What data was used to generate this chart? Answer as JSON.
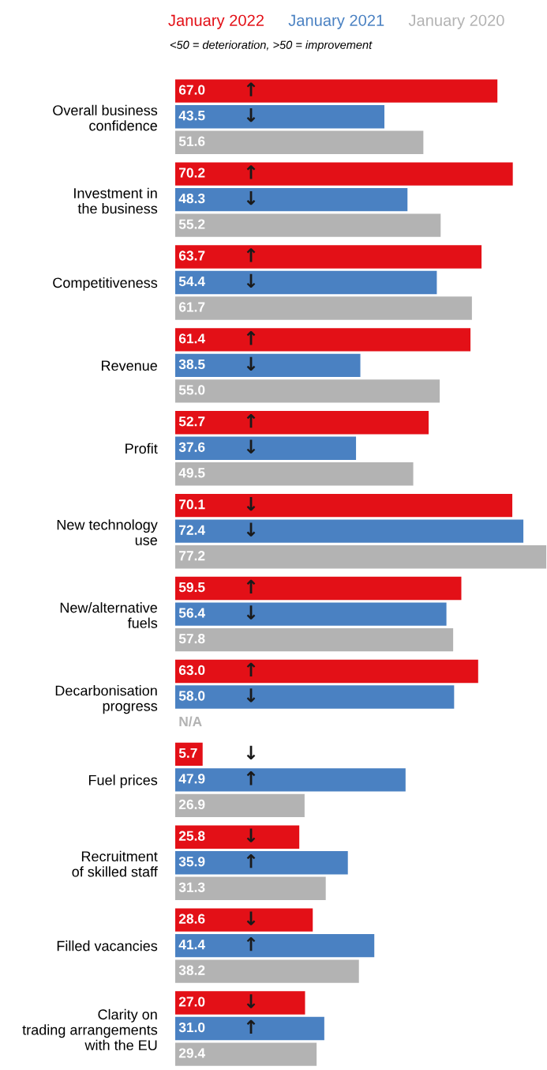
{
  "chart_data": {
    "type": "bar",
    "orientation": "horizontal",
    "subtitle": "<50 = deterioration, >50 = improvement",
    "legend": "top",
    "categories": [
      "Overall business\nconfidence",
      "Investment in\nthe business",
      "Competitiveness",
      "Revenue",
      "Profit",
      "New technology\nuse",
      "New/alternative\nfuels",
      "Decarbonisation\nprogress",
      "Fuel prices",
      "Recruitment\nof skilled staff",
      "Filled vacancies",
      "Clarity on\ntrading arrangements\nwith the EU"
    ],
    "series": [
      {
        "name": "January 2022",
        "color": "#e31017",
        "values": [
          67.0,
          70.2,
          63.7,
          61.4,
          52.7,
          70.1,
          59.5,
          63.0,
          5.7,
          25.8,
          28.6,
          27.0
        ],
        "value_labels": [
          "67.0",
          "70.2",
          "63.7",
          "61.4",
          "52.7",
          "70.1",
          "59.5",
          "63.0",
          "5.7",
          "25.8",
          "28.6",
          "27.0"
        ]
      },
      {
        "name": "January 2021",
        "color": "#4a81c2",
        "values": [
          43.5,
          48.3,
          54.4,
          38.5,
          37.6,
          72.4,
          56.4,
          58.0,
          47.9,
          35.9,
          41.4,
          31.0
        ],
        "value_labels": [
          "43.5",
          "48.3",
          "54.4",
          "38.5",
          "37.6",
          "72.4",
          "56.4",
          "58.0",
          "47.9",
          "35.9",
          "41.4",
          "31.0"
        ]
      },
      {
        "name": "January 2020",
        "color": "#b3b3b3",
        "values": [
          51.6,
          55.2,
          61.7,
          55.0,
          49.5,
          77.2,
          57.8,
          null,
          26.9,
          31.3,
          38.2,
          29.4
        ],
        "value_labels": [
          "51.6",
          "55.2",
          "61.7",
          "55.0",
          "49.5",
          "77.2",
          "57.8",
          "N/A",
          "26.9",
          "31.3",
          "38.2",
          "29.4"
        ]
      }
    ],
    "annotations": [
      "↑",
      "↓",
      "↑",
      "↓",
      "↑",
      "↓",
      "↑",
      "↓",
      "↑",
      "↓",
      "↓",
      "↓",
      "↑",
      "↓",
      "↑",
      "↓",
      "↓",
      "↑",
      "↓",
      "↑",
      "↓",
      "↑",
      "↓",
      "↑"
    ]
  }
}
